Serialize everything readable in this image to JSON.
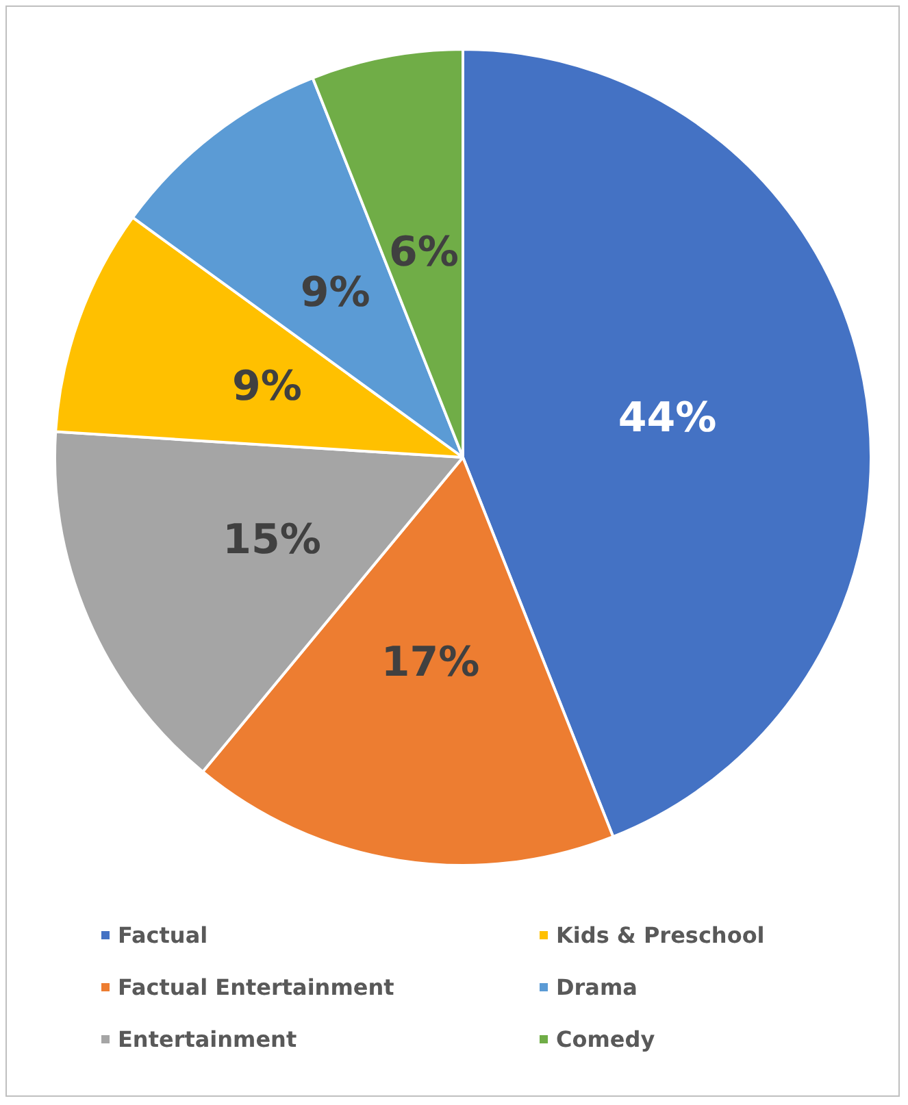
{
  "chart_data": {
    "type": "pie",
    "categories": [
      "Factual",
      "Factual Entertainment",
      "Entertainment",
      "Kids & Preschool",
      "Drama",
      "Comedy"
    ],
    "values": [
      44,
      17,
      15,
      9,
      9,
      6
    ],
    "colors": [
      "#4472c4",
      "#ed7d31",
      "#a5a5a5",
      "#ffc000",
      "#5b9bd5",
      "#70ad47"
    ],
    "value_labels": [
      "44%",
      "17%",
      "15%",
      "9%",
      "9%",
      "6%"
    ],
    "legend": "bottom"
  }
}
